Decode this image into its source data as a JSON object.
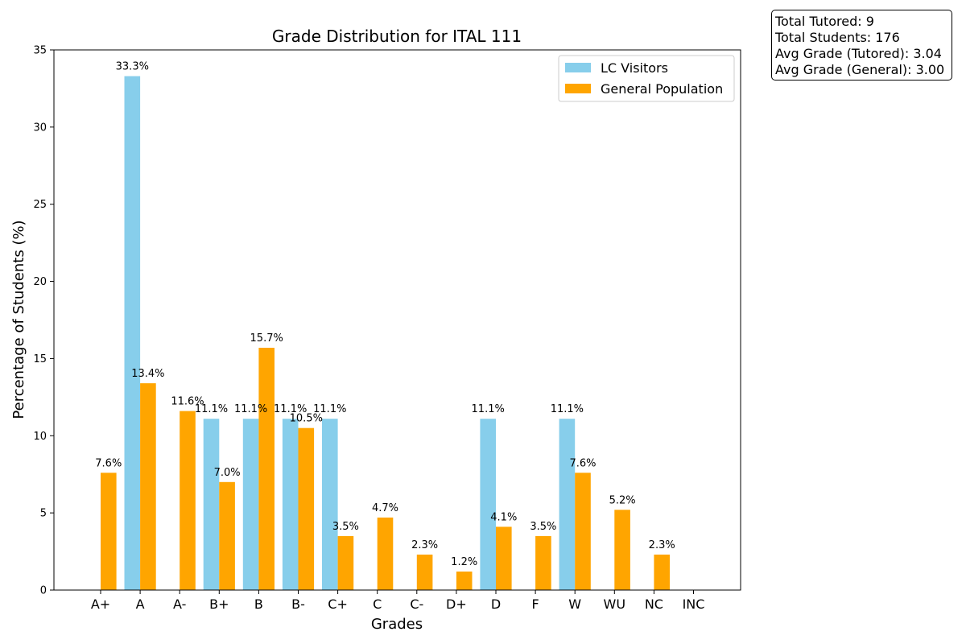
{
  "chart_data": {
    "type": "bar",
    "title": "Grade Distribution for ITAL 111",
    "xlabel": "Grades",
    "ylabel": "Percentage of Students (%)",
    "ylim": [
      0,
      35
    ],
    "yticks": [
      0,
      5,
      10,
      15,
      20,
      25,
      30,
      35
    ],
    "grid": false,
    "legend_position": "top-right",
    "categories": [
      "A+",
      "A",
      "A-",
      "B+",
      "B",
      "B-",
      "C+",
      "C",
      "C-",
      "D+",
      "D",
      "F",
      "W",
      "WU",
      "NC",
      "INC"
    ],
    "series": [
      {
        "name": "LC Visitors",
        "color": "#87ceeb",
        "values": [
          0,
          33.3,
          0,
          11.1,
          11.1,
          11.1,
          11.1,
          0,
          0,
          0,
          11.1,
          0,
          11.1,
          0,
          0,
          0
        ],
        "data_labels": [
          "",
          "33.3%",
          "",
          "11.1%",
          "11.1%",
          "11.1%",
          "11.1%",
          "",
          "",
          "",
          "11.1%",
          "",
          "11.1%",
          "",
          "",
          ""
        ]
      },
      {
        "name": "General Population",
        "color": "#ffa500",
        "values": [
          7.6,
          13.4,
          11.6,
          7.0,
          15.7,
          10.5,
          3.5,
          4.7,
          2.3,
          1.2,
          4.1,
          3.5,
          7.6,
          5.2,
          2.3,
          0
        ],
        "data_labels": [
          "7.6%",
          "13.4%",
          "11.6%",
          "7.0%",
          "15.7%",
          "10.5%",
          "3.5%",
          "4.7%",
          "2.3%",
          "1.2%",
          "4.1%",
          "3.5%",
          "7.6%",
          "5.2%",
          "2.3%",
          ""
        ]
      }
    ]
  },
  "stats": {
    "total_tutored": "Total Tutored: 9",
    "total_students": "Total Students: 176",
    "avg_tutored": "Avg Grade (Tutored): 3.04",
    "avg_general": "Avg Grade (General): 3.00"
  }
}
